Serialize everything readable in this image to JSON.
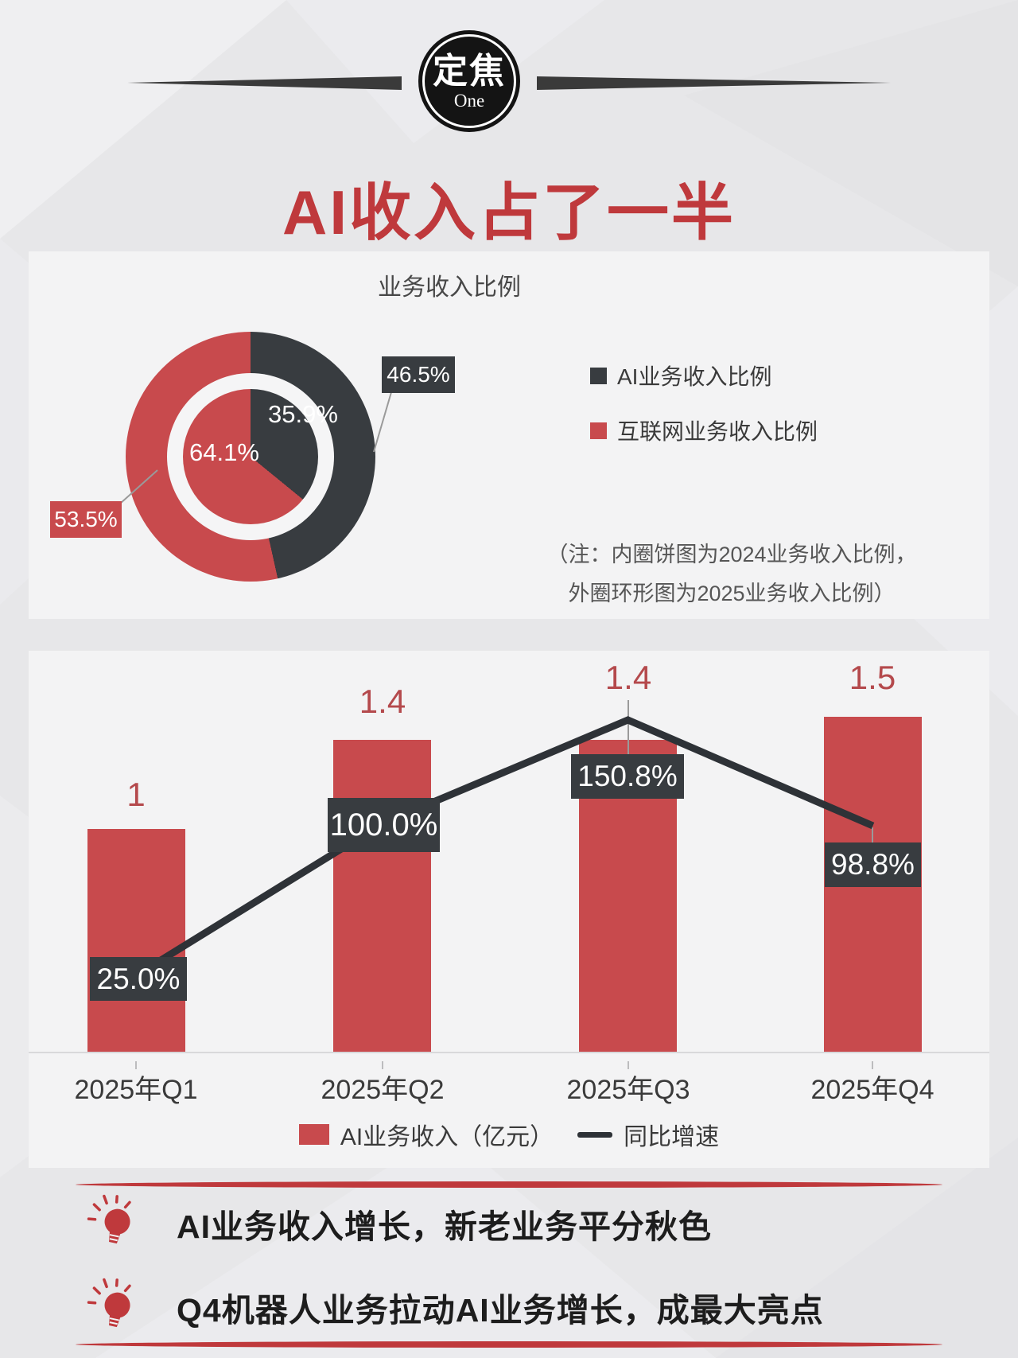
{
  "badge": {
    "title": "定焦",
    "subtitle": "One"
  },
  "page_title": "AI收入占了一半",
  "colors": {
    "red_accent": "#bf393c",
    "red_fill": "#c84a4d",
    "dark_fill": "#383c40",
    "line_color": "#2e3237",
    "panel_bg": "#f3f3f4",
    "page_bg": "#e7e7e9"
  },
  "donut_section": {
    "title": "业务收入比例",
    "inner_dark_label": "35.9%",
    "inner_red_label": "64.1%",
    "outer_dark_label": "46.5%",
    "outer_red_label": "53.5%",
    "legend": [
      {
        "label": "AI业务收入比例",
        "color": "#383c40"
      },
      {
        "label": "互联网业务收入比例",
        "color": "#c84a4d"
      }
    ],
    "note_line1": "（注：内圈饼图为2024业务收入比例，",
    "note_line2": "外圈环形图为2025业务收入比例）"
  },
  "bar_section": {
    "categories": [
      "2025年Q1",
      "2025年Q2",
      "2025年Q3",
      "2025年Q4"
    ],
    "bar_values": [
      "1",
      "1.4",
      "1.4",
      "1.5"
    ],
    "growth_labels": [
      "25.0%",
      "100.0%",
      "150.8%",
      "98.8%"
    ],
    "legend_bar": "AI业务收入（亿元）",
    "legend_line": "同比增速"
  },
  "insights": [
    {
      "text": "AI业务收入增长，新老业务平分秋色"
    },
    {
      "text": "Q4机器人业务拉动AI业务增长，成最大亮点"
    }
  ],
  "chart_data": [
    {
      "type": "pie",
      "title": "业务收入比例",
      "legend_position": "right",
      "rings": [
        {
          "name": "2024业务收入比例（内圈饼图）",
          "slices": [
            {
              "label": "AI业务收入比例",
              "value": 35.9,
              "color": "#383c40"
            },
            {
              "label": "互联网业务收入比例",
              "value": 64.1,
              "color": "#c84a4d"
            }
          ]
        },
        {
          "name": "2025业务收入比例（外圈环形图）",
          "slices": [
            {
              "label": "AI业务收入比例",
              "value": 46.5,
              "color": "#383c40"
            },
            {
              "label": "互联网业务收入比例",
              "value": 53.5,
              "color": "#c84a4d"
            }
          ]
        }
      ]
    },
    {
      "type": "bar",
      "categories": [
        "2025年Q1",
        "2025年Q2",
        "2025年Q3",
        "2025年Q4"
      ],
      "series": [
        {
          "name": "AI业务收入（亿元）",
          "type": "bar",
          "values": [
            1,
            1.4,
            1.4,
            1.5
          ]
        },
        {
          "name": "同比增速",
          "type": "line",
          "values_pct": [
            25.0,
            100.0,
            150.8,
            98.8
          ]
        }
      ],
      "xlabel": "",
      "ylabel": "",
      "grid": false,
      "legend_position": "bottom"
    }
  ]
}
